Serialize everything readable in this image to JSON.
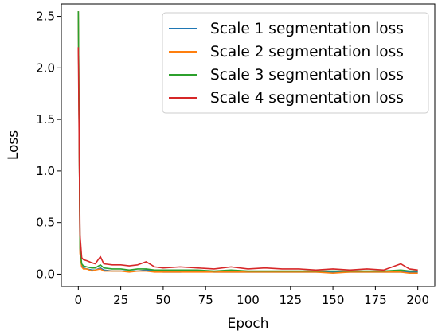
{
  "chart_data": {
    "type": "line",
    "title": "",
    "xlabel": "Epoch",
    "ylabel": "Loss",
    "xlim": [
      -10,
      210
    ],
    "ylim": [
      -0.12,
      2.62
    ],
    "x_ticks": [
      0,
      25,
      50,
      75,
      100,
      125,
      150,
      175,
      200
    ],
    "x_tick_labels": [
      "0",
      "25",
      "50",
      "75",
      "100",
      "125",
      "150",
      "175",
      "200"
    ],
    "y_ticks": [
      0.0,
      0.5,
      1.0,
      1.5,
      2.0,
      2.5
    ],
    "y_tick_labels": [
      "0.0",
      "0.5",
      "1.0",
      "1.5",
      "2.0",
      "2.5"
    ],
    "grid": false,
    "legend_position": "top-right",
    "x": [
      0,
      1,
      2,
      3,
      5,
      8,
      10,
      13,
      15,
      20,
      25,
      30,
      35,
      40,
      45,
      50,
      60,
      70,
      80,
      90,
      100,
      110,
      120,
      130,
      140,
      150,
      160,
      170,
      180,
      190,
      195,
      200
    ],
    "series": [
      {
        "name": "Scale 1 segmentation loss",
        "color": "#1f77b4",
        "values": [
          2.55,
          0.22,
          0.08,
          0.06,
          0.05,
          0.04,
          0.04,
          0.06,
          0.04,
          0.03,
          0.03,
          0.03,
          0.03,
          0.04,
          0.03,
          0.02,
          0.02,
          0.03,
          0.02,
          0.02,
          0.02,
          0.02,
          0.02,
          0.02,
          0.02,
          0.02,
          0.02,
          0.02,
          0.02,
          0.02,
          0.02,
          0.02
        ]
      },
      {
        "name": "Scale 2 segmentation loss",
        "color": "#ff7f0e",
        "values": [
          2.55,
          0.2,
          0.07,
          0.05,
          0.05,
          0.03,
          0.04,
          0.05,
          0.03,
          0.03,
          0.03,
          0.02,
          0.03,
          0.03,
          0.02,
          0.02,
          0.02,
          0.02,
          0.02,
          0.02,
          0.02,
          0.02,
          0.02,
          0.02,
          0.02,
          0.01,
          0.02,
          0.02,
          0.02,
          0.02,
          0.01,
          0.01
        ]
      },
      {
        "name": "Scale 3 segmentation loss",
        "color": "#2ca02c",
        "values": [
          2.55,
          0.25,
          0.1,
          0.08,
          0.07,
          0.06,
          0.06,
          0.09,
          0.06,
          0.05,
          0.05,
          0.04,
          0.05,
          0.05,
          0.04,
          0.04,
          0.04,
          0.04,
          0.03,
          0.04,
          0.03,
          0.03,
          0.03,
          0.03,
          0.03,
          0.03,
          0.03,
          0.03,
          0.03,
          0.04,
          0.03,
          0.03
        ]
      },
      {
        "name": "Scale 4 segmentation loss",
        "color": "#d62728",
        "values": [
          2.2,
          0.38,
          0.16,
          0.14,
          0.13,
          0.11,
          0.1,
          0.17,
          0.1,
          0.09,
          0.09,
          0.08,
          0.09,
          0.12,
          0.07,
          0.06,
          0.07,
          0.06,
          0.05,
          0.07,
          0.05,
          0.06,
          0.05,
          0.05,
          0.04,
          0.05,
          0.04,
          0.05,
          0.04,
          0.1,
          0.05,
          0.04
        ]
      }
    ]
  }
}
